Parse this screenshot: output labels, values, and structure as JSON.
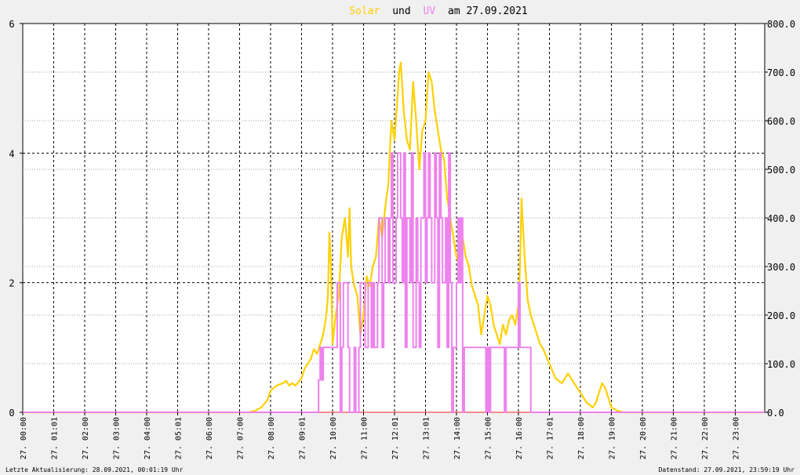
{
  "chart_data": {
    "type": "line",
    "title": {
      "solar": "Solar",
      "und": "und",
      "uv": "UV",
      "rest": "am 27.09.2021"
    },
    "colors": {
      "solar": "#ffd000",
      "uv": "#ee82ee",
      "title_dark": "#000000",
      "axis": "#000000",
      "plot_bg": "#ffffff",
      "baseline": "#ff8c8c"
    },
    "x_tick_labels": [
      "27. 00:00",
      "27. 01:01",
      "27. 02:00",
      "27. 03:00",
      "27. 04:00",
      "27. 05:01",
      "27. 06:00",
      "27. 07:00",
      "27. 08:00",
      "27. 09:01",
      "27. 10:00",
      "27. 11:00",
      "27. 12:01",
      "27. 13:01",
      "27. 14:00",
      "27. 15:00",
      "27. 16:00",
      "27. 17:01",
      "27. 18:00",
      "27. 19:00",
      "27. 20:00",
      "27. 21:00",
      "27. 22:00",
      "27. 23:00"
    ],
    "y_left_ticks": [
      "0",
      "2",
      "4",
      "6"
    ],
    "y_left_range": [
      0,
      6
    ],
    "y_right_ticks": [
      "0.0",
      "100.0",
      "200.0",
      "300.0",
      "400.0",
      "500.0",
      "600.0",
      "700.0",
      "800.0"
    ],
    "y_right_range": [
      0,
      800
    ],
    "x_range_hours": [
      0,
      23.95
    ],
    "grid": true,
    "series": [
      {
        "name": "Solar",
        "axis": "right",
        "x": [
          0,
          7.3,
          7.5,
          7.7,
          7.9,
          8.0,
          8.2,
          8.4,
          8.5,
          8.6,
          8.7,
          8.8,
          9.0,
          9.1,
          9.2,
          9.3,
          9.4,
          9.5,
          9.6,
          9.7,
          9.8,
          9.85,
          9.9,
          9.95,
          10.0,
          10.1,
          10.2,
          10.3,
          10.4,
          10.5,
          10.55,
          10.6,
          10.7,
          10.8,
          10.9,
          11.0,
          11.1,
          11.2,
          11.3,
          11.4,
          11.5,
          11.6,
          11.7,
          11.8,
          11.9,
          12.0,
          12.1,
          12.15,
          12.2,
          12.3,
          12.4,
          12.5,
          12.6,
          12.7,
          12.8,
          12.9,
          13.0,
          13.1,
          13.2,
          13.3,
          13.4,
          13.5,
          13.6,
          13.7,
          13.8,
          13.9,
          14.0,
          14.1,
          14.2,
          14.3,
          14.4,
          14.5,
          14.6,
          14.7,
          14.8,
          14.9,
          15.0,
          15.1,
          15.2,
          15.3,
          15.4,
          15.5,
          15.6,
          15.7,
          15.8,
          15.9,
          16.0,
          16.05,
          16.1,
          16.2,
          16.3,
          16.4,
          16.5,
          16.6,
          16.7,
          16.8,
          17.0,
          17.2,
          17.4,
          17.6,
          17.8,
          18.0,
          18.2,
          18.4,
          18.5,
          18.6,
          18.7,
          18.8,
          19.0,
          19.2,
          19.4,
          23.95
        ],
        "y": [
          0,
          0,
          3,
          10,
          25,
          45,
          55,
          60,
          65,
          55,
          60,
          55,
          70,
          90,
          100,
          110,
          130,
          120,
          140,
          160,
          200,
          240,
          370,
          300,
          140,
          200,
          240,
          360,
          400,
          320,
          420,
          300,
          260,
          240,
          160,
          200,
          280,
          260,
          300,
          320,
          400,
          360,
          420,
          470,
          600,
          560,
          650,
          700,
          720,
          620,
          560,
          540,
          680,
          600,
          500,
          580,
          600,
          700,
          680,
          620,
          580,
          540,
          520,
          440,
          400,
          360,
          320,
          300,
          360,
          320,
          300,
          260,
          240,
          220,
          160,
          200,
          240,
          220,
          180,
          160,
          140,
          180,
          160,
          190,
          200,
          180,
          220,
          300,
          440,
          320,
          230,
          200,
          180,
          160,
          140,
          130,
          100,
          70,
          60,
          80,
          60,
          40,
          20,
          10,
          20,
          40,
          60,
          50,
          10,
          3,
          0,
          0
        ]
      },
      {
        "name": "UV",
        "axis": "left",
        "x": [
          0,
          9.5,
          9.55,
          9.6,
          9.65,
          9.7,
          9.75,
          10.1,
          10.15,
          10.25,
          10.3,
          10.35,
          10.45,
          10.5,
          10.55,
          10.7,
          10.75,
          10.85,
          10.9,
          11.05,
          11.1,
          11.15,
          11.25,
          11.3,
          11.35,
          11.45,
          11.5,
          11.6,
          11.65,
          11.7,
          11.8,
          11.85,
          11.9,
          11.95,
          12.05,
          12.1,
          12.2,
          12.25,
          12.3,
          12.35,
          12.4,
          12.5,
          12.55,
          12.6,
          12.7,
          12.75,
          12.8,
          12.85,
          12.95,
          13.0,
          13.05,
          13.1,
          13.15,
          13.2,
          13.3,
          13.35,
          13.4,
          13.45,
          13.5,
          13.55,
          13.65,
          13.7,
          13.75,
          13.8,
          13.85,
          13.9,
          14.0,
          14.05,
          14.1,
          14.15,
          14.2,
          14.25,
          14.3,
          14.35,
          14.4,
          14.45,
          14.5,
          14.55,
          14.6,
          14.9,
          14.95,
          15.0,
          15.05,
          15.1,
          15.5,
          15.55,
          15.6,
          15.65,
          15.85,
          15.9,
          16.0,
          16.05,
          16.1,
          16.35,
          16.4,
          23.95
        ],
        "y": [
          0,
          0,
          0.5,
          1,
          0.5,
          1,
          1,
          1,
          2,
          0,
          1,
          2,
          2,
          1,
          0,
          1,
          0,
          1,
          2,
          1,
          1,
          2,
          1,
          2,
          1,
          2,
          3,
          1,
          2,
          3,
          2,
          3,
          4,
          2,
          3,
          4,
          3,
          2,
          4,
          1,
          3,
          2,
          4,
          1,
          3,
          2,
          1,
          3,
          4,
          2,
          3,
          4,
          3,
          2,
          4,
          3,
          1,
          4,
          3,
          2,
          3,
          1,
          4,
          2,
          0,
          1,
          2,
          3,
          2,
          3,
          0,
          1,
          1,
          1,
          1,
          1,
          1,
          1,
          1,
          1,
          0,
          1,
          0,
          1,
          1,
          0,
          1,
          1,
          1,
          1,
          2,
          1,
          1,
          1,
          0,
          0
        ]
      }
    ]
  },
  "footer": {
    "left": "Letzte Aktualisierung: 28.09.2021, 00:01:19 Uhr",
    "right": "Datenstand: 27.09.2021, 23:59:19 Uhr"
  }
}
